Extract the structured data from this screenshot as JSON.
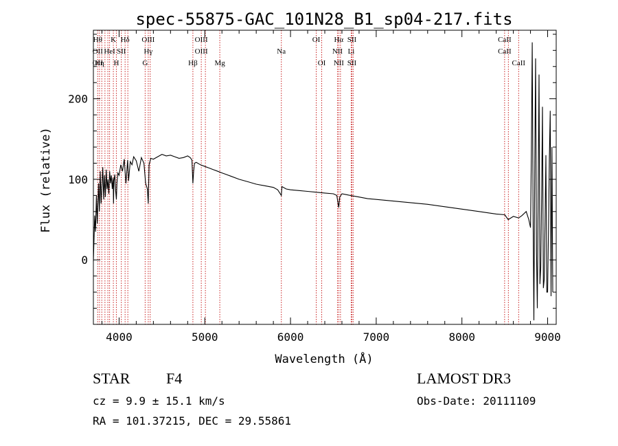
{
  "chart_data": {
    "type": "line",
    "title": "spec-55875-GAC_101N28_B1_sp04-217.fits",
    "xlabel": "Wavelength (Å)",
    "ylabel": "Flux (relative)",
    "xlim": [
      3700,
      9100
    ],
    "ylim": [
      -80,
      285
    ],
    "xticks": [
      4000,
      5000,
      6000,
      7000,
      8000,
      9000
    ],
    "xtick_labels": [
      "4000",
      "5000",
      "6000",
      "7000",
      "8000",
      "9000"
    ],
    "yticks": [
      0,
      100,
      200
    ],
    "ytick_labels": [
      "0",
      "100",
      "200"
    ],
    "series": [
      {
        "name": "spectrum",
        "x": [
          3700,
          3715,
          3725,
          3735,
          3745,
          3760,
          3770,
          3780,
          3790,
          3800,
          3810,
          3820,
          3830,
          3840,
          3850,
          3860,
          3870,
          3880,
          3890,
          3900,
          3910,
          3920,
          3930,
          3935,
          3940,
          3950,
          3960,
          3968,
          3975,
          3985,
          4000,
          4020,
          4040,
          4060,
          4080,
          4100,
          4110,
          4130,
          4150,
          4170,
          4200,
          4230,
          4260,
          4290,
          4310,
          4330,
          4340,
          4350,
          4370,
          4400,
          4450,
          4500,
          4550,
          4600,
          4650,
          4700,
          4750,
          4800,
          4830,
          4850,
          4861,
          4870,
          4880,
          4900,
          4950,
          5000,
          5050,
          5100,
          5150,
          5200,
          5250,
          5300,
          5400,
          5500,
          5600,
          5700,
          5800,
          5850,
          5893,
          5900,
          5950,
          6000,
          6100,
          6200,
          6300,
          6400,
          6500,
          6540,
          6563,
          6575,
          6600,
          6650,
          6700,
          6800,
          6900,
          7000,
          7200,
          7400,
          7600,
          7800,
          8000,
          8200,
          8400,
          8500,
          8540,
          8600,
          8662,
          8700,
          8750,
          8780,
          8800,
          8810,
          8820,
          8830,
          8840,
          8850,
          8860,
          8870,
          8880,
          8890,
          8900,
          8910,
          8920,
          8930,
          8940,
          8950,
          8960,
          8970,
          8980,
          8990,
          9000,
          9010,
          9020,
          9030,
          9040,
          9050,
          9060
        ],
        "values": [
          -2,
          55,
          35,
          80,
          45,
          95,
          60,
          110,
          70,
          92,
          115,
          75,
          105,
          78,
          112,
          88,
          100,
          82,
          110,
          95,
          105,
          88,
          102,
          70,
          98,
          106,
          85,
          75,
          95,
          108,
          105,
          118,
          110,
          125,
          95,
          124,
          98,
          122,
          118,
          128,
          123,
          110,
          127,
          120,
          95,
          88,
          70,
          118,
          126,
          125,
          128,
          131,
          129,
          130,
          128,
          126,
          127,
          129,
          127,
          124,
          95,
          110,
          120,
          121,
          118,
          116,
          114,
          112,
          110,
          108,
          106,
          104,
          100,
          97,
          94,
          92,
          90,
          87,
          80,
          91,
          88,
          87,
          86,
          85,
          84,
          83,
          82,
          80,
          65,
          78,
          82,
          81,
          80,
          78,
          76,
          75,
          73,
          71,
          69,
          66,
          63,
          60,
          57,
          56,
          50,
          54,
          52,
          55,
          60,
          50,
          40,
          130,
          270,
          60,
          -75,
          120,
          250,
          10,
          -60,
          90,
          230,
          -30,
          -10,
          80,
          190,
          -35,
          -25,
          50,
          130,
          -40,
          -40,
          40,
          125,
          185,
          -45,
          140,
          -40
        ],
        "color": "#000000"
      }
    ],
    "line_markers": [
      {
        "wavelength": 3750,
        "labels": [
          "Hθ",
          "OII",
          "OII"
        ]
      },
      {
        "wavelength": 3771,
        "labels": [
          "",
          "",
          "Hη"
        ]
      },
      {
        "wavelength": 3798,
        "labels": [
          "",
          "",
          ""
        ]
      },
      {
        "wavelength": 3835,
        "labels": [
          "",
          "",
          ""
        ]
      },
      {
        "wavelength": 3869,
        "labels": [
          "",
          "",
          ""
        ]
      },
      {
        "wavelength": 3889,
        "labels": [
          "",
          "HeI",
          ""
        ]
      },
      {
        "wavelength": 3933,
        "labels": [
          "K",
          "",
          ""
        ]
      },
      {
        "wavelength": 3968,
        "labels": [
          "",
          "",
          "H"
        ]
      },
      {
        "wavelength": 4026,
        "labels": [
          "",
          "SII",
          ""
        ]
      },
      {
        "wavelength": 4070,
        "labels": [
          "Hδ",
          "",
          ""
        ]
      },
      {
        "wavelength": 4102,
        "labels": [
          "",
          "",
          ""
        ]
      },
      {
        "wavelength": 4304,
        "labels": [
          "",
          "",
          "G"
        ]
      },
      {
        "wavelength": 4340,
        "labels": [
          "OIII",
          "Hγ",
          ""
        ]
      },
      {
        "wavelength": 4363,
        "labels": [
          "",
          "",
          ""
        ]
      },
      {
        "wavelength": 4861,
        "labels": [
          "",
          "",
          "Hβ"
        ]
      },
      {
        "wavelength": 4959,
        "labels": [
          "OIII",
          "OIII",
          ""
        ]
      },
      {
        "wavelength": 5007,
        "labels": [
          "",
          "",
          ""
        ]
      },
      {
        "wavelength": 5175,
        "labels": [
          "",
          "",
          "Mg"
        ]
      },
      {
        "wavelength": 5893,
        "labels": [
          "",
          "Na",
          ""
        ]
      },
      {
        "wavelength": 6300,
        "labels": [
          "OI",
          "",
          ""
        ]
      },
      {
        "wavelength": 6364,
        "labels": [
          "",
          "",
          "OI"
        ]
      },
      {
        "wavelength": 6548,
        "labels": [
          "",
          "NII",
          ""
        ]
      },
      {
        "wavelength": 6563,
        "labels": [
          "Hα",
          "",
          "NII"
        ]
      },
      {
        "wavelength": 6583,
        "labels": [
          "",
          "",
          ""
        ]
      },
      {
        "wavelength": 6708,
        "labels": [
          "",
          "Li",
          ""
        ]
      },
      {
        "wavelength": 6716,
        "labels": [
          "SII",
          "",
          "SII"
        ]
      },
      {
        "wavelength": 6731,
        "labels": [
          "",
          "",
          ""
        ]
      },
      {
        "wavelength": 8498,
        "labels": [
          "CaII",
          "CaII",
          ""
        ]
      },
      {
        "wavelength": 8542,
        "labels": [
          "",
          "",
          ""
        ]
      },
      {
        "wavelength": 8662,
        "labels": [
          "",
          "",
          "CaII"
        ]
      }
    ]
  },
  "info": {
    "object_type": "STAR",
    "subclass": "F4",
    "redshift": "cz = 9.9 ± 15.1 km/s",
    "coords": "RA = 101.37215, DEC =  29.55861",
    "survey": "LAMOST DR3",
    "obs_date": "Obs-Date: 20111109"
  },
  "colors": {
    "line": "#000000",
    "marker": "#c81e1e",
    "background": "#ffffff"
  }
}
